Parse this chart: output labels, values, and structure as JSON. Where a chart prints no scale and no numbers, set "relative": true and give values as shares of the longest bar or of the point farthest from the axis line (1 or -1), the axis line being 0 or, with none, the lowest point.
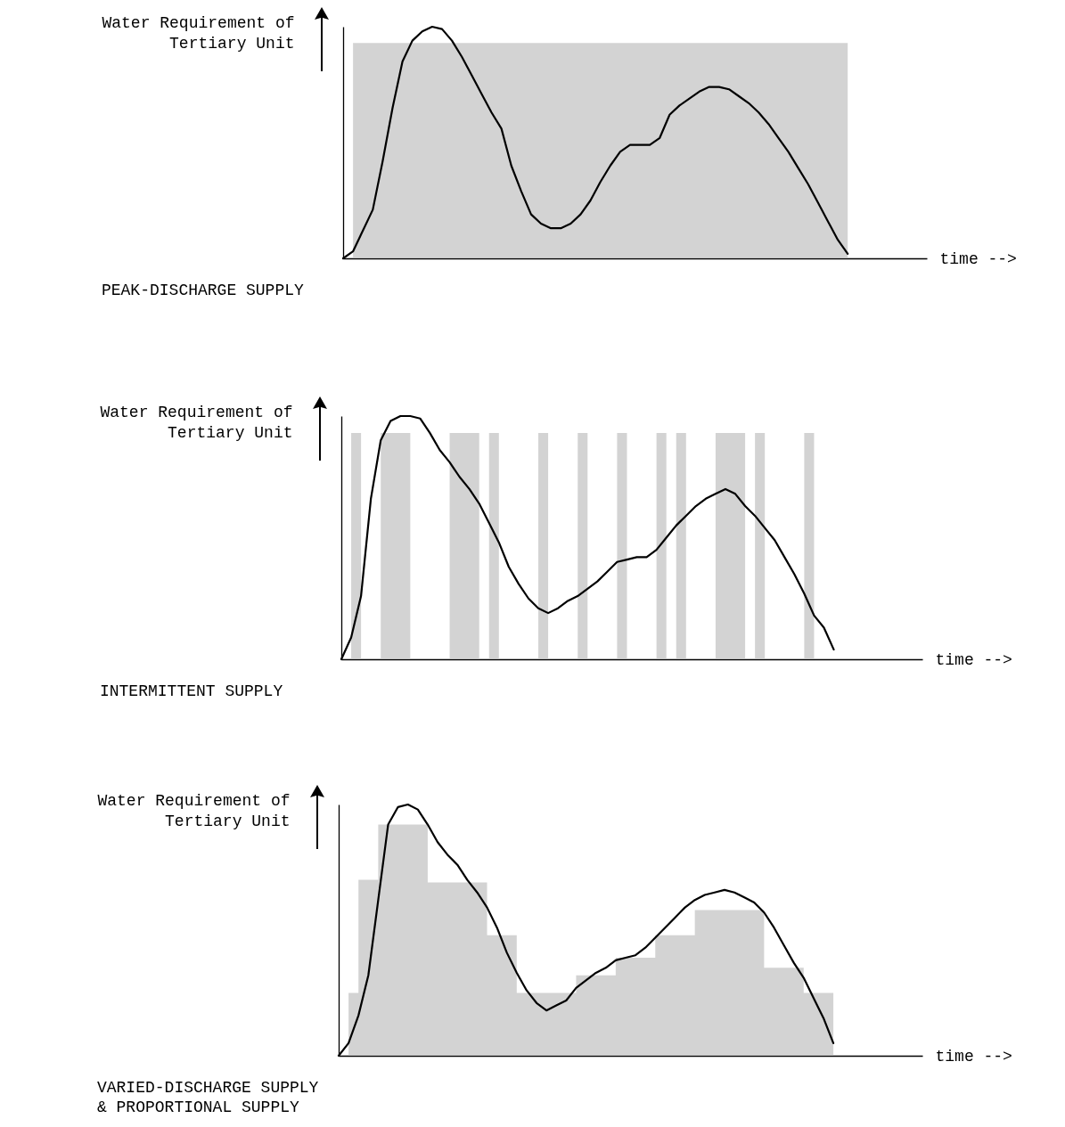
{
  "chart_data": [
    {
      "type": "line",
      "relative": true,
      "title": "PEAK-DISCHARGE SUPPLY",
      "xlabel": "time -->",
      "ylabel": "Water Requirement of\nTertiary Unit",
      "categories": [
        null,
        null,
        null,
        null,
        null,
        null,
        null,
        null,
        null,
        null,
        null,
        null,
        null,
        null,
        null,
        null,
        null,
        null,
        null,
        null,
        null,
        null,
        null,
        null,
        null,
        null,
        null,
        null,
        null,
        null,
        null,
        null,
        null,
        null,
        null,
        null,
        null,
        null,
        null,
        null,
        null,
        null,
        null,
        null,
        null,
        null,
        null,
        null,
        null,
        null,
        null,
        null,
        null,
        null,
        null,
        null,
        null,
        null,
        null,
        null
      ],
      "series": [
        {
          "type": "area",
          "color": "#c4c4c4",
          "values": [
            null,
            0.93,
            0.93,
            0.93,
            0.93,
            0.93,
            0.93,
            0.93,
            0.93,
            0.93,
            0.93,
            0.93,
            0.93,
            0.93,
            0.93,
            0.93,
            0.93,
            0.93,
            0.93,
            0.93,
            0.93,
            0.93,
            0.93,
            0.93,
            0.93,
            0.93,
            0.93,
            0.93,
            0.93,
            0.93,
            0.93,
            0.93,
            0.93,
            0.93,
            0.93,
            0.93,
            0.93,
            0.93,
            0.93,
            0.93,
            0.93,
            0.93,
            0.93,
            0.93,
            0.93,
            0.93,
            0.93,
            0.93,
            0.93,
            0.93,
            0.93,
            0,
            null,
            null,
            null,
            null,
            null,
            null,
            null,
            null
          ]
        },
        {
          "color": "#000000",
          "values": [
            0,
            0.03,
            0.12,
            0.21,
            0.42,
            0.65,
            0.85,
            0.94,
            0.98,
            1,
            0.99,
            0.94,
            0.87,
            0.79,
            0.71,
            0.63,
            0.56,
            0.4,
            0.29,
            0.19,
            0.15,
            0.13,
            0.13,
            0.15,
            0.19,
            0.25,
            0.33,
            0.4,
            0.46,
            0.49,
            0.49,
            0.49,
            0.52,
            0.62,
            0.66,
            0.69,
            0.72,
            0.74,
            0.74,
            0.73,
            0.7,
            0.67,
            0.63,
            0.58,
            0.52,
            0.46,
            0.39,
            0.32,
            0.24,
            0.16,
            0.08,
            0.02,
            null,
            null,
            null,
            null,
            null,
            null,
            null,
            null
          ]
        }
      ]
    },
    {
      "type": "line",
      "relative": true,
      "title": "INTERMITTENT SUPPLY",
      "xlabel": "time -->",
      "ylabel": "Water Requirement of\nTertiary Unit",
      "categories": [
        null,
        null,
        null,
        null,
        null,
        null,
        null,
        null,
        null,
        null,
        null,
        null,
        null,
        null,
        null,
        null,
        null,
        null,
        null,
        null,
        null,
        null,
        null,
        null,
        null,
        null,
        null,
        null,
        null,
        null,
        null,
        null,
        null,
        null,
        null,
        null,
        null,
        null,
        null,
        null,
        null,
        null,
        null,
        null,
        null,
        null,
        null,
        null,
        null,
        null,
        null,
        null,
        null,
        null,
        null,
        null,
        null,
        null,
        null,
        null
      ],
      "series": [
        {
          "type": "area",
          "color": "#c4c4c4",
          "values": [
            0,
            0.93,
            0,
            0,
            0.93,
            0.93,
            0.93,
            0,
            0,
            0,
            0,
            0.93,
            0.93,
            0.93,
            0,
            0.93,
            0,
            0,
            0,
            0,
            0.93,
            0,
            0,
            0,
            0.93,
            0,
            0,
            0,
            0.93,
            0,
            0,
            0,
            0.93,
            0,
            0.93,
            0,
            0,
            0,
            0.93,
            0.93,
            0.93,
            0,
            0.93,
            0,
            0,
            0,
            0,
            0.93,
            0,
            null,
            null,
            null,
            null,
            null,
            null,
            null,
            null,
            null,
            null,
            null
          ]
        },
        {
          "color": "#000000",
          "values": [
            0,
            0.09,
            0.26,
            0.66,
            0.9,
            0.98,
            1,
            1,
            0.99,
            0.93,
            0.86,
            0.81,
            0.75,
            0.7,
            0.64,
            0.56,
            0.48,
            0.38,
            0.31,
            0.25,
            0.21,
            0.19,
            0.21,
            0.24,
            0.26,
            0.29,
            0.32,
            0.36,
            0.4,
            0.41,
            0.42,
            0.42,
            0.45,
            0.5,
            0.55,
            0.59,
            0.63,
            0.66,
            0.68,
            0.7,
            0.68,
            0.63,
            0.59,
            0.54,
            0.49,
            0.42,
            0.35,
            0.27,
            0.18,
            0.13,
            0.04,
            null,
            null,
            null,
            null,
            null,
            null,
            null,
            null,
            null
          ]
        }
      ]
    },
    {
      "type": "line",
      "relative": true,
      "title": "VARIED-DISCHARGE SUPPLY\n& PROPORTIONAL SUPPLY",
      "xlabel": "time -->",
      "ylabel": "Water Requirement of\nTertiary Unit",
      "categories": [
        null,
        null,
        null,
        null,
        null,
        null,
        null,
        null,
        null,
        null,
        null,
        null,
        null,
        null,
        null,
        null,
        null,
        null,
        null,
        null,
        null,
        null,
        null,
        null,
        null,
        null,
        null,
        null,
        null,
        null,
        null,
        null,
        null,
        null,
        null,
        null,
        null,
        null,
        null,
        null,
        null,
        null,
        null,
        null,
        null,
        null,
        null,
        null,
        null,
        null,
        null,
        null,
        null,
        null,
        null,
        null,
        null,
        null,
        null,
        null
      ],
      "series": [
        {
          "type": "area",
          "color": "#c4c4c4",
          "values": [
            null,
            0.25,
            0.7,
            0.7,
            0.92,
            0.92,
            0.92,
            0.92,
            0.92,
            0.69,
            0.69,
            0.69,
            0.69,
            0.69,
            0.69,
            0.48,
            0.48,
            0.48,
            0.25,
            0.25,
            0.25,
            0.25,
            0.25,
            0.25,
            0.32,
            0.32,
            0.32,
            0.32,
            0.39,
            0.39,
            0.39,
            0.39,
            0.48,
            0.48,
            0.48,
            0.48,
            0.58,
            0.58,
            0.58,
            0.58,
            0.58,
            0.58,
            0.58,
            0.35,
            0.35,
            0.35,
            0.35,
            0.25,
            0.25,
            0.25,
            0,
            null,
            null,
            null,
            null,
            null,
            null,
            null,
            null,
            null
          ]
        },
        {
          "color": "#000000",
          "values": [
            0,
            0.05,
            0.16,
            0.32,
            0.62,
            0.92,
            0.99,
            1,
            0.98,
            0.92,
            0.85,
            0.8,
            0.76,
            0.7,
            0.65,
            0.59,
            0.51,
            0.41,
            0.33,
            0.26,
            0.21,
            0.18,
            0.2,
            0.22,
            0.27,
            0.3,
            0.33,
            0.35,
            0.38,
            0.39,
            0.4,
            0.43,
            0.47,
            0.51,
            0.55,
            0.59,
            0.62,
            0.64,
            0.65,
            0.66,
            0.65,
            0.63,
            0.61,
            0.57,
            0.51,
            0.44,
            0.37,
            0.31,
            0.23,
            0.15,
            0.05,
            null,
            null,
            null,
            null,
            null,
            null,
            null,
            null,
            null
          ]
        }
      ]
    }
  ]
}
